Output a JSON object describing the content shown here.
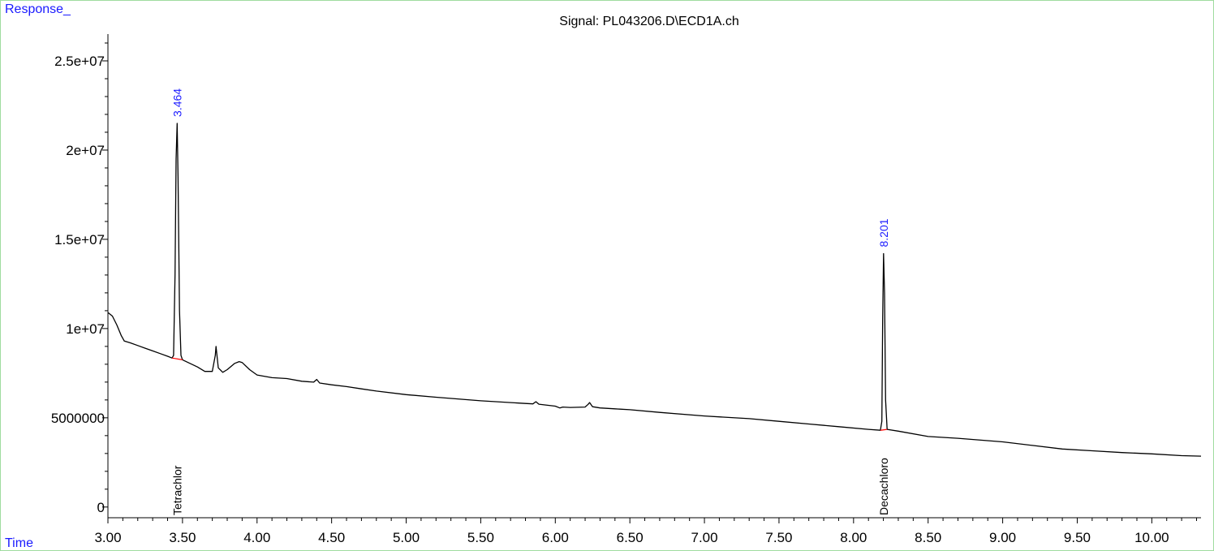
{
  "colors": {
    "frame": "#9fdc9f",
    "axis": "#000000",
    "trace": "#000000",
    "baseline": "#ff0000",
    "label_blue": "#1a1aff"
  },
  "chart_data": {
    "type": "line",
    "title": "Signal: PL043206.D\\ECD1A.ch",
    "ylabel": "Response_",
    "xlabel": "Time",
    "xlim": [
      3.0,
      10.33
    ],
    "ylim": [
      -600000,
      26500000
    ],
    "x_ticks": [
      "3.00",
      "3.50",
      "4.00",
      "4.50",
      "5.00",
      "5.50",
      "6.00",
      "6.50",
      "7.00",
      "7.50",
      "8.00",
      "8.50",
      "9.00",
      "9.50",
      "10.00"
    ],
    "y_ticks": [
      {
        "value": 0,
        "label": "0"
      },
      {
        "value": 5000000,
        "label": "5000000"
      },
      {
        "value": 10000000,
        "label": "1e+07"
      },
      {
        "value": 15000000,
        "label": "1.5e+07"
      },
      {
        "value": 20000000,
        "label": "2e+07"
      },
      {
        "value": 25000000,
        "label": "2.5e+07"
      }
    ],
    "grid": false,
    "series": [
      {
        "points": [
          [
            3.0,
            10900000
          ],
          [
            3.03,
            10700000
          ],
          [
            3.06,
            10200000
          ],
          [
            3.09,
            9600000
          ],
          [
            3.11,
            9300000
          ],
          [
            3.15,
            9200000
          ],
          [
            3.2,
            9050000
          ],
          [
            3.25,
            8900000
          ],
          [
            3.3,
            8750000
          ],
          [
            3.35,
            8600000
          ],
          [
            3.4,
            8450000
          ],
          [
            3.43,
            8350000
          ],
          [
            3.44,
            8500000
          ],
          [
            3.45,
            13000000
          ],
          [
            3.457,
            19500000
          ],
          [
            3.464,
            21500000
          ],
          [
            3.47,
            18500000
          ],
          [
            3.48,
            11000000
          ],
          [
            3.49,
            8500000
          ],
          [
            3.5,
            8250000
          ],
          [
            3.55,
            8050000
          ],
          [
            3.6,
            7850000
          ],
          [
            3.65,
            7600000
          ],
          [
            3.7,
            7600000
          ],
          [
            3.72,
            8500000
          ],
          [
            3.725,
            9000000
          ],
          [
            3.74,
            7800000
          ],
          [
            3.77,
            7550000
          ],
          [
            3.8,
            7700000
          ],
          [
            3.85,
            8050000
          ],
          [
            3.88,
            8150000
          ],
          [
            3.9,
            8100000
          ],
          [
            3.95,
            7700000
          ],
          [
            4.0,
            7400000
          ],
          [
            4.1,
            7250000
          ],
          [
            4.2,
            7200000
          ],
          [
            4.3,
            7050000
          ],
          [
            4.38,
            7000000
          ],
          [
            4.4,
            7150000
          ],
          [
            4.42,
            6950000
          ],
          [
            4.5,
            6850000
          ],
          [
            4.6,
            6750000
          ],
          [
            4.7,
            6620000
          ],
          [
            4.8,
            6500000
          ],
          [
            5.0,
            6300000
          ],
          [
            5.2,
            6150000
          ],
          [
            5.5,
            5950000
          ],
          [
            5.8,
            5800000
          ],
          [
            5.85,
            5780000
          ],
          [
            5.87,
            5900000
          ],
          [
            5.89,
            5760000
          ],
          [
            6.0,
            5650000
          ],
          [
            6.03,
            5550000
          ],
          [
            6.05,
            5600000
          ],
          [
            6.1,
            5580000
          ],
          [
            6.2,
            5600000
          ],
          [
            6.22,
            5750000
          ],
          [
            6.23,
            5850000
          ],
          [
            6.25,
            5620000
          ],
          [
            6.3,
            5550000
          ],
          [
            6.4,
            5500000
          ],
          [
            6.5,
            5450000
          ],
          [
            6.7,
            5300000
          ],
          [
            7.0,
            5100000
          ],
          [
            7.3,
            4950000
          ],
          [
            7.5,
            4800000
          ],
          [
            7.7,
            4650000
          ],
          [
            7.9,
            4500000
          ],
          [
            8.1,
            4350000
          ],
          [
            8.18,
            4300000
          ],
          [
            8.19,
            4800000
          ],
          [
            8.195,
            10500000
          ],
          [
            8.201,
            14200000
          ],
          [
            8.208,
            12000000
          ],
          [
            8.215,
            6000000
          ],
          [
            8.225,
            4350000
          ],
          [
            8.3,
            4250000
          ],
          [
            8.5,
            3950000
          ],
          [
            8.7,
            3850000
          ],
          [
            9.0,
            3650000
          ],
          [
            9.2,
            3450000
          ],
          [
            9.4,
            3250000
          ],
          [
            9.6,
            3150000
          ],
          [
            9.8,
            3050000
          ],
          [
            10.0,
            2980000
          ],
          [
            10.2,
            2880000
          ],
          [
            10.33,
            2850000
          ]
        ]
      }
    ],
    "baselines": [
      {
        "x": [
          3.43,
          3.5
        ],
        "y": [
          8350000,
          8250000
        ]
      },
      {
        "x": [
          8.18,
          8.225
        ],
        "y": [
          4300000,
          4350000
        ]
      }
    ],
    "peaks": [
      {
        "rt": 3.464,
        "label": "3.464",
        "top": 21500000,
        "compound": "Tetrachlor"
      },
      {
        "rt": 8.201,
        "label": "8.201",
        "top": 14200000,
        "compound": "Decachloro"
      }
    ]
  }
}
